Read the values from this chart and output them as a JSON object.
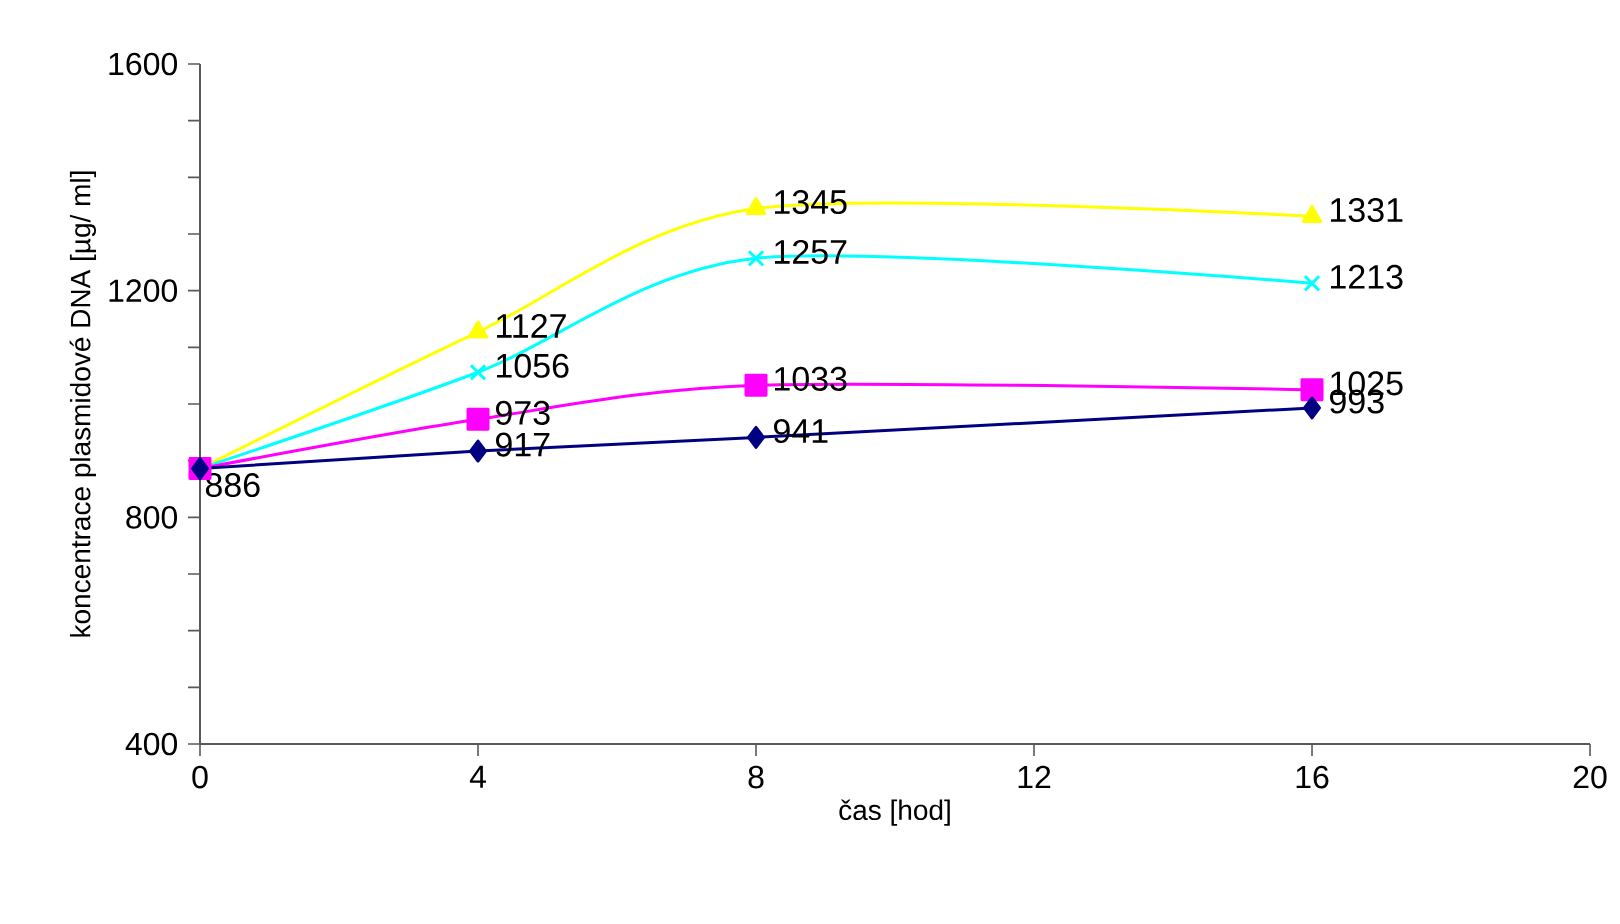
{
  "chart_data": {
    "type": "line",
    "xlabel": "čas [hod]",
    "ylabel": "koncentrace plasmidové DNA [µg/ ml]",
    "x": [
      0,
      4,
      8,
      16
    ],
    "series": [
      {
        "color": "#ffff00",
        "marker": "triangle",
        "values": [
          886,
          1127,
          1345,
          1331
        ],
        "value_labels": [
          null,
          "1127",
          "1345",
          "1331"
        ]
      },
      {
        "color": "#00ffff",
        "marker": "cross",
        "values": [
          886,
          1056,
          1257,
          1213
        ],
        "value_labels": [
          null,
          "1056",
          "1257",
          "1213"
        ]
      },
      {
        "color": "#ff00ff",
        "marker": "square",
        "values": [
          886,
          973,
          1033,
          1025
        ],
        "value_labels": [
          null,
          "973",
          "1033",
          "1025"
        ]
      },
      {
        "color": "#000080",
        "marker": "diamond",
        "values": [
          886,
          917,
          941,
          993
        ],
        "value_labels": [
          "886",
          "917",
          "941",
          "993"
        ]
      }
    ],
    "xlim": [
      0,
      20
    ],
    "xticks": [
      0,
      4,
      8,
      12,
      16,
      20
    ],
    "ylim": [
      400,
      1600
    ],
    "yticks": [
      400,
      {
        "value": 500,
        "label": null
      },
      {
        "value": 600,
        "label": null
      },
      {
        "value": 700,
        "label": null
      },
      800,
      {
        "value": 900,
        "label": null
      },
      {
        "value": 1000,
        "label": null
      },
      {
        "value": 1100,
        "label": null
      },
      1200,
      {
        "value": 1300,
        "label": null
      },
      {
        "value": 1400,
        "label": null
      },
      {
        "value": 1500,
        "label": null
      },
      1600
    ],
    "grid": false,
    "line_style": "solid"
  }
}
